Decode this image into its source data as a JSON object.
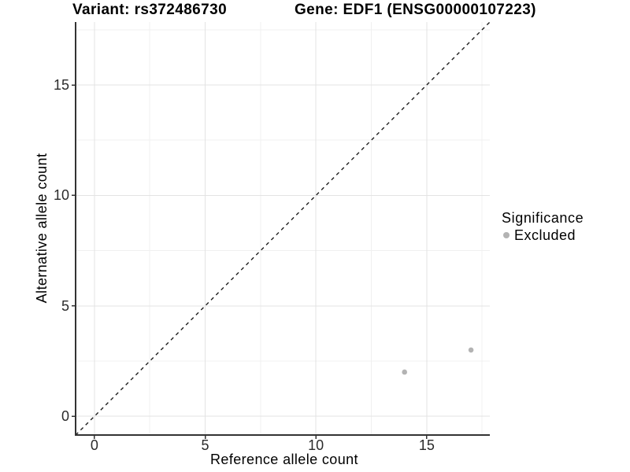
{
  "chart_data": {
    "type": "scatter",
    "title_left": "Variant: rs372486730",
    "title_right": "Gene: EDF1 (ENSG00000107223)",
    "xlabel": "Reference allele count",
    "ylabel": "Alternative allele count",
    "xlim": [
      -0.85,
      17.85
    ],
    "ylim": [
      -0.85,
      17.85
    ],
    "x_ticks": [
      0,
      5,
      10,
      15
    ],
    "y_ticks": [
      0,
      5,
      10,
      15
    ],
    "x_minor_ticks": [
      2.5,
      7.5,
      12.5,
      17.5
    ],
    "y_minor_ticks": [
      2.5,
      7.5,
      12.5,
      17.5
    ],
    "grid": "major and minor gridlines, white background",
    "identity_line": {
      "style": "dashed",
      "equation": "y = x",
      "color": "#1f1f1f"
    },
    "series": [
      {
        "name": "Excluded",
        "color": "#b3b3b3",
        "marker": "circle",
        "points": [
          [
            14,
            2
          ],
          [
            17,
            3
          ]
        ]
      }
    ],
    "legend": {
      "title": "Significance",
      "position": "right",
      "items": [
        {
          "label": "Excluded",
          "color": "#b3b3b3",
          "marker": "circle"
        }
      ]
    }
  },
  "colors": {
    "background": "#ffffff",
    "grid_major": "#e3e3e3",
    "grid_minor": "#f0f0f0",
    "axis": "#333333",
    "tick_label": "#2b2b2b"
  }
}
